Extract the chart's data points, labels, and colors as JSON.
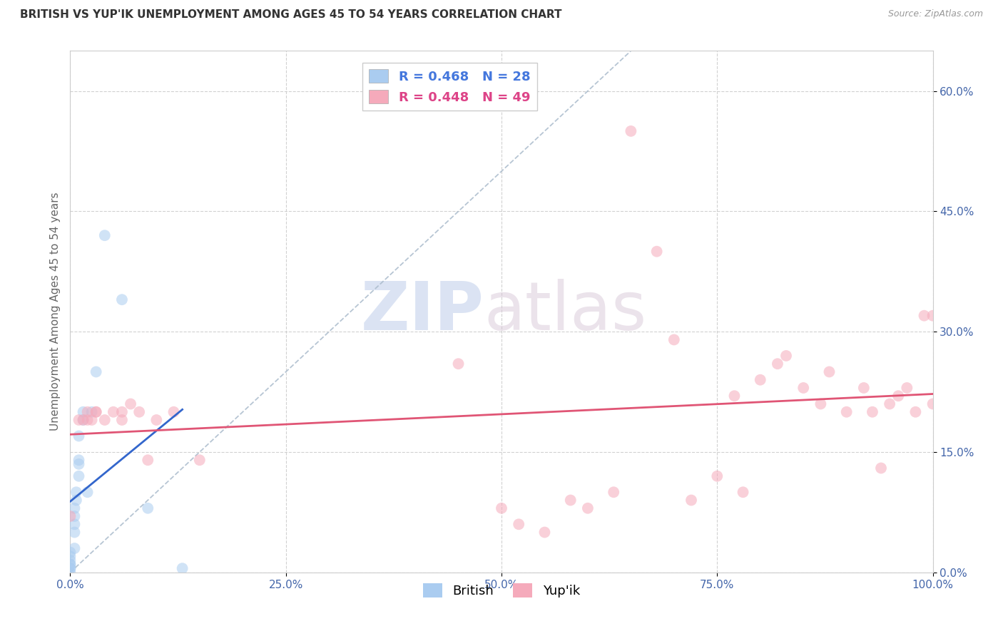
{
  "title": "BRITISH VS YUP'IK UNEMPLOYMENT AMONG AGES 45 TO 54 YEARS CORRELATION CHART",
  "source": "Source: ZipAtlas.com",
  "ylabel": "Unemployment Among Ages 45 to 54 years",
  "xlim": [
    0,
    1.0
  ],
  "ylim": [
    0,
    0.65
  ],
  "xticks": [
    0.0,
    0.25,
    0.5,
    0.75,
    1.0
  ],
  "xtick_labels": [
    "0.0%",
    "25.0%",
    "50.0%",
    "75.0%",
    "100.0%"
  ],
  "yticks": [
    0.0,
    0.15,
    0.3,
    0.45,
    0.6
  ],
  "ytick_labels": [
    "0.0%",
    "15.0%",
    "30.0%",
    "45.0%",
    "60.0%"
  ],
  "legend_R_british": "R = 0.468",
  "legend_N_british": "N = 28",
  "legend_R_yupik": "R = 0.448",
  "legend_N_yupik": "N = 49",
  "british_color": "#aaccf0",
  "yupik_color": "#f5aabb",
  "british_line_color": "#3366cc",
  "yupik_line_color": "#e05575",
  "dashed_line_color": "#aabbcc",
  "british_x": [
    0.0,
    0.0,
    0.0,
    0.0,
    0.0,
    0.0,
    0.0,
    0.0,
    0.005,
    0.005,
    0.005,
    0.005,
    0.005,
    0.007,
    0.007,
    0.01,
    0.01,
    0.01,
    0.01,
    0.015,
    0.015,
    0.02,
    0.025,
    0.03,
    0.04,
    0.06,
    0.09,
    0.13
  ],
  "british_y": [
    0.0,
    0.005,
    0.005,
    0.01,
    0.01,
    0.015,
    0.02,
    0.025,
    0.03,
    0.05,
    0.06,
    0.07,
    0.08,
    0.09,
    0.1,
    0.12,
    0.135,
    0.14,
    0.17,
    0.19,
    0.2,
    0.1,
    0.2,
    0.25,
    0.42,
    0.34,
    0.08,
    0.005
  ],
  "yupik_x": [
    0.0,
    0.01,
    0.015,
    0.02,
    0.02,
    0.025,
    0.03,
    0.03,
    0.04,
    0.05,
    0.06,
    0.06,
    0.07,
    0.08,
    0.09,
    0.1,
    0.12,
    0.15,
    0.45,
    0.5,
    0.52,
    0.55,
    0.58,
    0.6,
    0.63,
    0.65,
    0.68,
    0.7,
    0.72,
    0.75,
    0.77,
    0.78,
    0.8,
    0.82,
    0.83,
    0.85,
    0.87,
    0.88,
    0.9,
    0.92,
    0.93,
    0.94,
    0.95,
    0.96,
    0.97,
    0.98,
    0.99,
    1.0,
    1.0
  ],
  "yupik_y": [
    0.07,
    0.19,
    0.19,
    0.19,
    0.2,
    0.19,
    0.2,
    0.2,
    0.19,
    0.2,
    0.19,
    0.2,
    0.21,
    0.2,
    0.14,
    0.19,
    0.2,
    0.14,
    0.26,
    0.08,
    0.06,
    0.05,
    0.09,
    0.08,
    0.1,
    0.55,
    0.4,
    0.29,
    0.09,
    0.12,
    0.22,
    0.1,
    0.24,
    0.26,
    0.27,
    0.23,
    0.21,
    0.25,
    0.2,
    0.23,
    0.2,
    0.13,
    0.21,
    0.22,
    0.23,
    0.2,
    0.32,
    0.21,
    0.32
  ],
  "watermark_zip": "ZIP",
  "watermark_atlas": "atlas",
  "marker_size": 130,
  "alpha": 0.55
}
